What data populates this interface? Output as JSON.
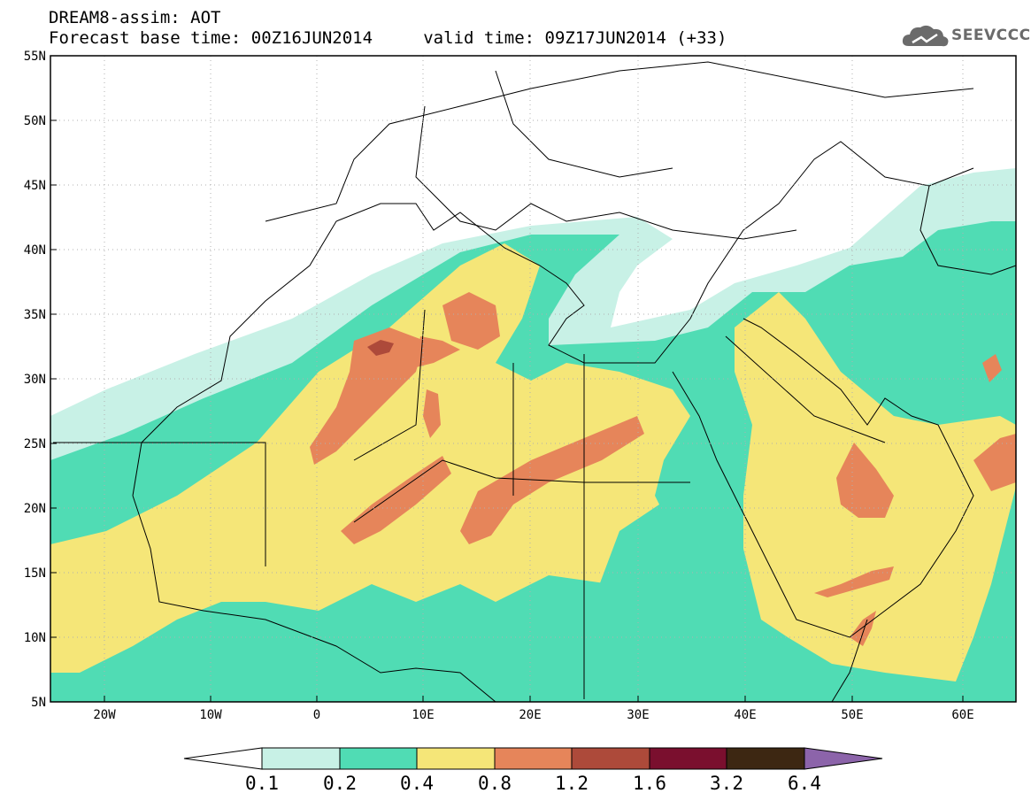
{
  "header": {
    "title": "DREAM8-assim: AOT",
    "subtitle": "Forecast base time: 00Z16JUN2014     valid time: 09Z17JUN2014 (+33)",
    "logo_text": "SEEVCCC"
  },
  "axes": {
    "lat_labels": [
      "55N",
      "50N",
      "45N",
      "40N",
      "35N",
      "30N",
      "25N",
      "20N",
      "15N",
      "10N",
      "5N"
    ],
    "lon_labels": [
      "20W",
      "10W",
      "0",
      "10E",
      "20E",
      "30E",
      "40E",
      "50E",
      "60E"
    ]
  },
  "colorbar": {
    "levels": [
      "0.1",
      "0.2",
      "0.4",
      "0.8",
      "1.2",
      "1.6",
      "3.2",
      "6.4"
    ],
    "colors": [
      "#ffffff",
      "#c8f1e6",
      "#50dcb4",
      "#f5e678",
      "#e6855a",
      "#ad4a3a",
      "#7a0f2e",
      "#3d2712",
      "#8c64aa"
    ]
  },
  "map_colors": {
    "background": "#ffffff",
    "aot_0_1_0_2": "#c8f1e6",
    "aot_0_2_0_4": "#50dcb4",
    "aot_0_4_0_8": "#f5e678",
    "aot_0_8_1_2": "#e6855a",
    "aot_1_2_1_6": "#ad4a3a",
    "aot_1_6_3_2": "#7a0f2e",
    "coastline": "#000000"
  }
}
